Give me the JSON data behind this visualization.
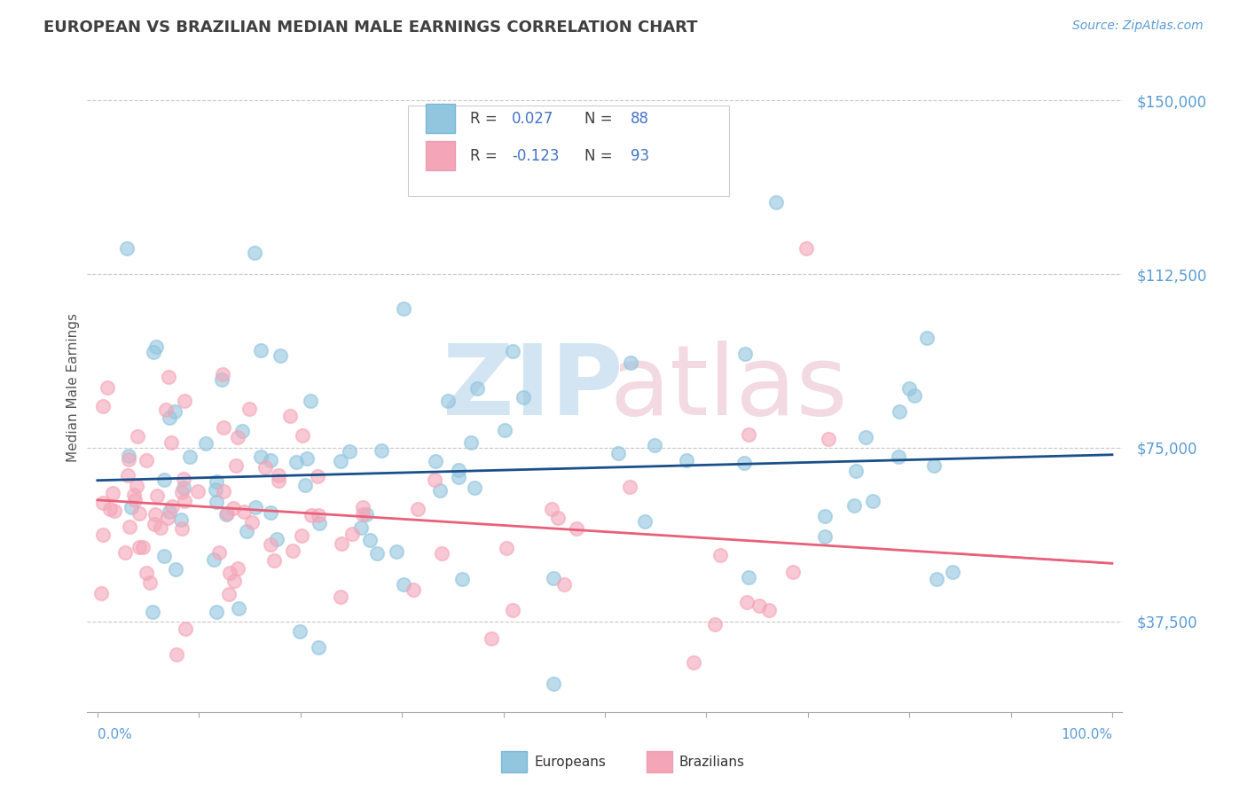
{
  "title": "EUROPEAN VS BRAZILIAN MEDIAN MALE EARNINGS CORRELATION CHART",
  "source": "Source: ZipAtlas.com",
  "ylabel": "Median Male Earnings",
  "y_ticks": [
    37500,
    75000,
    112500,
    150000
  ],
  "y_tick_labels": [
    "$37,500",
    "$75,000",
    "$112,500",
    "$150,000"
  ],
  "y_min": 18000,
  "y_max": 158000,
  "x_min": -0.01,
  "x_max": 1.01,
  "european_color": "#92c5de",
  "brazilian_color": "#f4a6b8",
  "trend_european_color": "#1a4f8a",
  "trend_brazilian_color": "#e8607a",
  "R_european": 0.027,
  "N_european": 88,
  "R_brazilian": -0.123,
  "N_brazilian": 93,
  "legend_title_european": "Europeans",
  "legend_title_brazilian": "Brazilians",
  "title_color": "#404040",
  "axis_label_color": "#5b9bd5",
  "legend_text_color": "#404040",
  "legend_value_color": "#4472c4",
  "background_color": "#ffffff",
  "grid_color": "#c8c8c8",
  "watermark_zip_color": "#c8dff0",
  "watermark_atlas_color": "#f0d0da"
}
